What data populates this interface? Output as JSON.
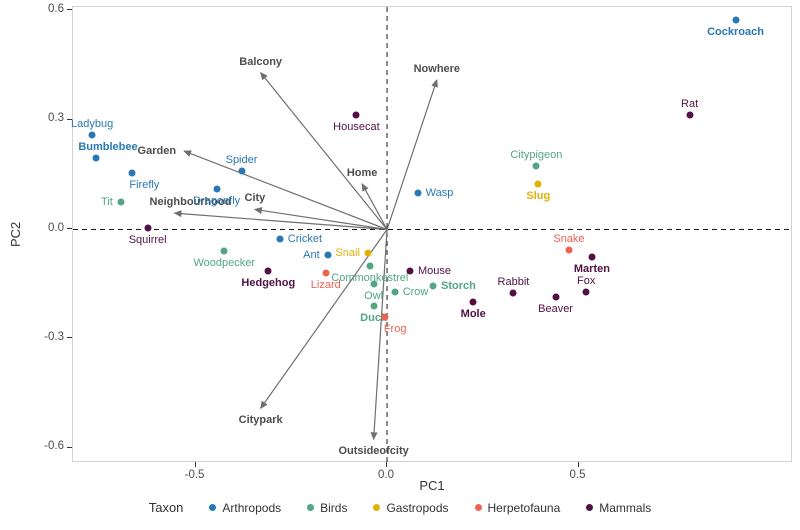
{
  "chart_data": {
    "type": "scatter",
    "title": "",
    "xlabel": "PC1",
    "ylabel": "PC2",
    "xlim": [
      -0.82,
      1.06
    ],
    "ylim": [
      -0.64,
      0.61
    ],
    "grid": false,
    "x_ticks": [
      {
        "value": -0.5,
        "label": "-0.5"
      },
      {
        "value": 0.0,
        "label": "0.0"
      },
      {
        "value": 0.5,
        "label": "0.5"
      }
    ],
    "y_ticks": [
      {
        "value": 0.6,
        "label": "0.6"
      },
      {
        "value": 0.3,
        "label": "0.3"
      },
      {
        "value": 0.0,
        "label": "0.0"
      },
      {
        "value": -0.3,
        "label": "-0.3"
      },
      {
        "value": -0.6,
        "label": "-0.6"
      }
    ],
    "reference_lines": {
      "vertical_x": 0,
      "horizontal_y": 0,
      "style": "dashed",
      "color": "#1a1a1a"
    },
    "arrow_color": "#6f6f6f",
    "arrow_label_color": "#4d4d4d",
    "panel_border_color": "#d4d4d4",
    "taxa": {
      "Arthropods": "#2878b5",
      "Birds": "#53a584",
      "Gastropods": "#e2b007",
      "Herpetofauna": "#ec6352",
      "Mammals": "#511144"
    },
    "arrows": [
      {
        "name": "Balcony",
        "x": -0.33,
        "y": 0.43,
        "label_pos": "above"
      },
      {
        "name": "Nowhere",
        "x": 0.13,
        "y": 0.41,
        "label_pos": "above"
      },
      {
        "name": "Garden",
        "x": -0.53,
        "y": 0.215,
        "label_pos": "left"
      },
      {
        "name": "Home",
        "x": -0.065,
        "y": 0.125,
        "label_pos": "above"
      },
      {
        "name": "City",
        "x": -0.345,
        "y": 0.055,
        "label_pos": "above"
      },
      {
        "name": "Neighbourhood",
        "x": -0.555,
        "y": 0.045,
        "label_pos": "above",
        "dx": 16
      },
      {
        "name": "Citypark",
        "x": -0.33,
        "y": -0.49,
        "label_pos": "below"
      },
      {
        "name": "Outsideofcity",
        "x": -0.035,
        "y": -0.575,
        "label_pos": "below"
      }
    ],
    "points": [
      {
        "name": "Ladybug",
        "taxon": "Arthropods",
        "x": -0.77,
        "y": 0.26,
        "bold": false,
        "label_pos": "above"
      },
      {
        "name": "Bumblebee",
        "taxon": "Arthropods",
        "x": -0.76,
        "y": 0.195,
        "bold": true,
        "label_pos": "above",
        "dx": 12
      },
      {
        "name": "Firefly",
        "taxon": "Arthropods",
        "x": -0.665,
        "y": 0.155,
        "bold": false,
        "label_pos": "below",
        "dx": 12
      },
      {
        "name": "Spider",
        "taxon": "Arthropods",
        "x": -0.38,
        "y": 0.16,
        "bold": false,
        "label_pos": "above"
      },
      {
        "name": "Dragonfly",
        "taxon": "Arthropods",
        "x": -0.445,
        "y": 0.11,
        "bold": false,
        "label_pos": "below"
      },
      {
        "name": "Tit",
        "taxon": "Birds",
        "x": -0.695,
        "y": 0.075,
        "bold": false,
        "label_pos": "left"
      },
      {
        "name": "Squirrel",
        "taxon": "Mammals",
        "x": -0.625,
        "y": 0.005,
        "bold": false,
        "label_pos": "below"
      },
      {
        "name": "Housecat",
        "taxon": "Mammals",
        "x": -0.08,
        "y": 0.315,
        "bold": false,
        "label_pos": "below"
      },
      {
        "name": "Cockroach",
        "taxon": "Arthropods",
        "x": 0.91,
        "y": 0.575,
        "bold": true,
        "label_pos": "below"
      },
      {
        "name": "Rat",
        "taxon": "Mammals",
        "x": 0.79,
        "y": 0.315,
        "bold": false,
        "label_pos": "above"
      },
      {
        "name": "Citypigeon",
        "taxon": "Birds",
        "x": 0.39,
        "y": 0.175,
        "bold": false,
        "label_pos": "above"
      },
      {
        "name": "Slug",
        "taxon": "Gastropods",
        "x": 0.395,
        "y": 0.125,
        "bold": true,
        "label_pos": "below"
      },
      {
        "name": "Wasp",
        "taxon": "Arthropods",
        "x": 0.08,
        "y": 0.1,
        "bold": false,
        "label_pos": "right"
      },
      {
        "name": "Cricket",
        "taxon": "Arthropods",
        "x": -0.28,
        "y": -0.025,
        "bold": false,
        "label_pos": "right"
      },
      {
        "name": "Woodpecker",
        "taxon": "Birds",
        "x": -0.425,
        "y": -0.06,
        "bold": false,
        "label_pos": "below"
      },
      {
        "name": "Ant",
        "taxon": "Arthropods",
        "x": -0.155,
        "y": -0.07,
        "bold": false,
        "label_pos": "left"
      },
      {
        "name": "Snail",
        "taxon": "Gastropods",
        "x": -0.05,
        "y": -0.065,
        "bold": false,
        "label_pos": "left"
      },
      {
        "name": "Commonkestrel",
        "taxon": "Birds",
        "x": -0.045,
        "y": -0.1,
        "bold": false,
        "label_pos": "below"
      },
      {
        "name": "Mouse",
        "taxon": "Mammals",
        "x": 0.06,
        "y": -0.115,
        "bold": false,
        "label_pos": "right"
      },
      {
        "name": "Hedgehog",
        "taxon": "Mammals",
        "x": -0.31,
        "y": -0.115,
        "bold": true,
        "label_pos": "below"
      },
      {
        "name": "Lizard",
        "taxon": "Herpetofauna",
        "x": -0.16,
        "y": -0.12,
        "bold": false,
        "label_pos": "below"
      },
      {
        "name": "Owl",
        "taxon": "Birds",
        "x": -0.035,
        "y": -0.15,
        "bold": false,
        "label_pos": "below"
      },
      {
        "name": "Crow",
        "taxon": "Birds",
        "x": 0.02,
        "y": -0.17,
        "bold": false,
        "label_pos": "right"
      },
      {
        "name": "Storch",
        "taxon": "Birds",
        "x": 0.12,
        "y": -0.155,
        "bold": true,
        "label_pos": "right"
      },
      {
        "name": "Duck",
        "taxon": "Birds",
        "x": -0.035,
        "y": -0.21,
        "bold": true,
        "label_pos": "below"
      },
      {
        "name": "Frog",
        "taxon": "Herpetofauna",
        "x": -0.005,
        "y": -0.24,
        "bold": false,
        "label_pos": "below",
        "dx": 10
      },
      {
        "name": "Mole",
        "taxon": "Mammals",
        "x": 0.225,
        "y": -0.2,
        "bold": true,
        "label_pos": "below"
      },
      {
        "name": "Rabbit",
        "taxon": "Mammals",
        "x": 0.33,
        "y": -0.175,
        "bold": false,
        "label_pos": "above"
      },
      {
        "name": "Beaver",
        "taxon": "Mammals",
        "x": 0.44,
        "y": -0.185,
        "bold": false,
        "label_pos": "below"
      },
      {
        "name": "Fox",
        "taxon": "Mammals",
        "x": 0.52,
        "y": -0.17,
        "bold": false,
        "label_pos": "above"
      },
      {
        "name": "Marten",
        "taxon": "Mammals",
        "x": 0.535,
        "y": -0.075,
        "bold": true,
        "label_pos": "below"
      },
      {
        "name": "Snake",
        "taxon": "Herpetofauna",
        "x": 0.475,
        "y": -0.055,
        "bold": false,
        "label_pos": "above"
      }
    ],
    "legend": {
      "title": "Taxon",
      "items": [
        "Arthropods",
        "Birds",
        "Gastropods",
        "Herpetofauna",
        "Mammals"
      ]
    }
  }
}
